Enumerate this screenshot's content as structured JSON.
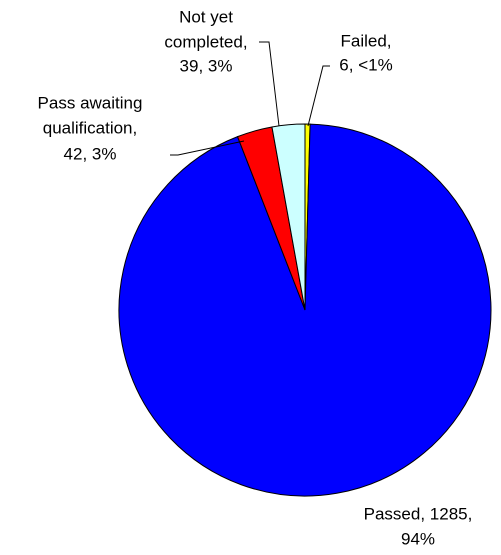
{
  "chart_data": {
    "type": "pie",
    "labels": [
      [
        "Failed,",
        "6, <1%"
      ],
      [
        "Passed, 1285,",
        "94%"
      ],
      [
        "Pass awaiting",
        "qualification,",
        "42, 3%"
      ],
      [
        "Not yet",
        "completed,",
        "39, 3%"
      ]
    ],
    "values": [
      6,
      1285,
      42,
      39
    ],
    "colors": [
      "#ffff00",
      "#0000ff",
      "#ff0000",
      "#ccffff"
    ]
  }
}
